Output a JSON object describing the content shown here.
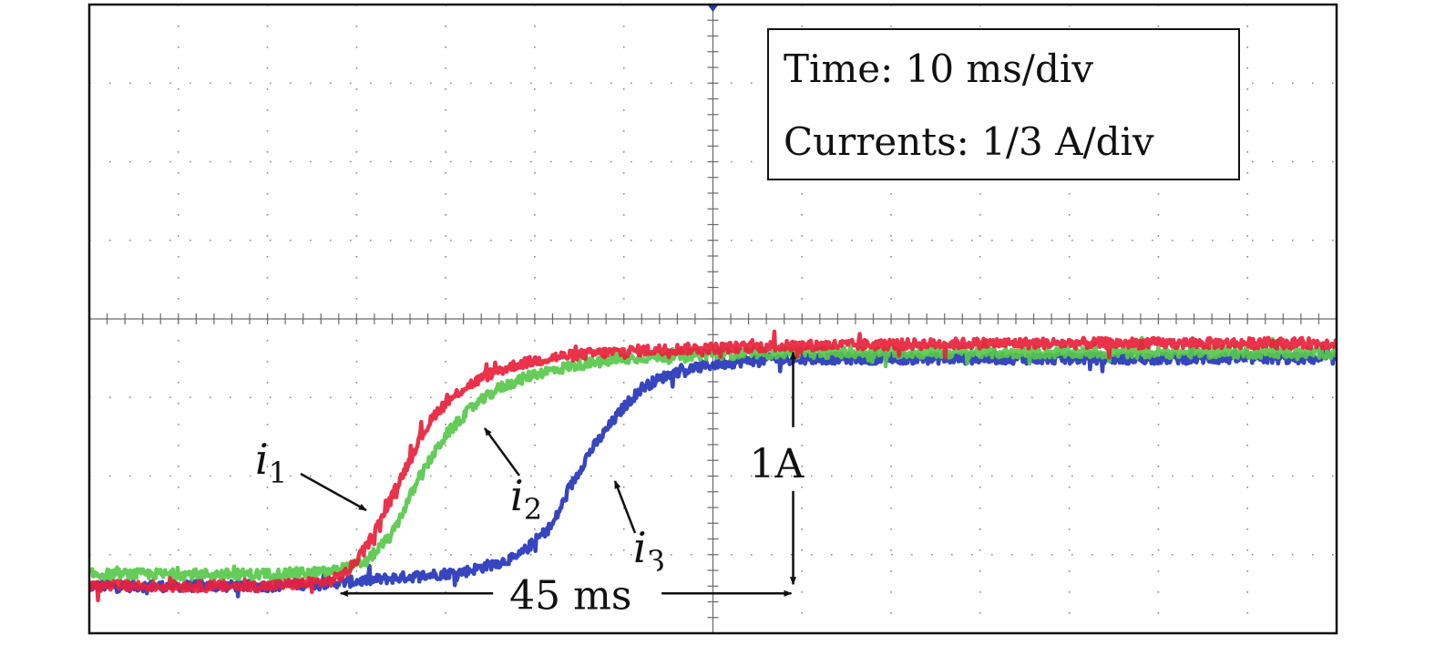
{
  "chart_data": {
    "type": "line",
    "title": "",
    "xlabel": "",
    "ylabel": "",
    "grid": true,
    "grid_divisions": {
      "x": 14,
      "y": 8
    },
    "scale": {
      "time_label": "Time: 10 ms/div",
      "current_label": "Currents: 1/3 A/div",
      "time_per_div_ms": 10,
      "current_per_div_A": 0.3333
    },
    "xlim": [
      0,
      140
    ],
    "ylim": [
      -0.2,
      2.4667
    ],
    "x_unit": "ms",
    "y_unit": "A",
    "series": [
      {
        "name": "i",
        "subscript": "1",
        "color": "#e8213c",
        "x": [
          0,
          20,
          27,
          29,
          31,
          33,
          35,
          37,
          39,
          42,
          45,
          48,
          52,
          56,
          62,
          70,
          80,
          100,
          140
        ],
        "y": [
          0.0,
          0.0,
          0.02,
          0.06,
          0.16,
          0.3,
          0.46,
          0.62,
          0.74,
          0.84,
          0.9,
          0.94,
          0.97,
          0.985,
          1.0,
          1.01,
          1.02,
          1.03,
          1.03
        ]
      },
      {
        "name": "i",
        "subscript": "2",
        "color": "#57c84a",
        "x": [
          0,
          20,
          27,
          31,
          34,
          36,
          38,
          40,
          43,
          46,
          50,
          55,
          62,
          70,
          80,
          100,
          140
        ],
        "y": [
          0.05,
          0.05,
          0.06,
          0.1,
          0.22,
          0.38,
          0.52,
          0.64,
          0.76,
          0.84,
          0.9,
          0.94,
          0.97,
          0.985,
          0.99,
          0.99,
          0.99
        ]
      },
      {
        "name": "i",
        "subscript": "3",
        "color": "#2636b8",
        "x": [
          0,
          20,
          30,
          42,
          48,
          52,
          54,
          56,
          58,
          60,
          62,
          64,
          66,
          70,
          75,
          80,
          100,
          140
        ],
        "y": [
          0.0,
          0.0,
          0.02,
          0.06,
          0.12,
          0.26,
          0.42,
          0.56,
          0.66,
          0.76,
          0.84,
          0.88,
          0.91,
          0.94,
          0.96,
          0.965,
          0.965,
          0.965
        ]
      }
    ],
    "annotations": [
      {
        "text": "1A",
        "type": "vertical-dimension",
        "x": 79,
        "y_from": 0.0,
        "y_to": 1.0
      },
      {
        "text": "45 ms",
        "type": "horizontal-dimension",
        "y": 0.0,
        "x_from": 28,
        "x_to": 79
      }
    ]
  }
}
